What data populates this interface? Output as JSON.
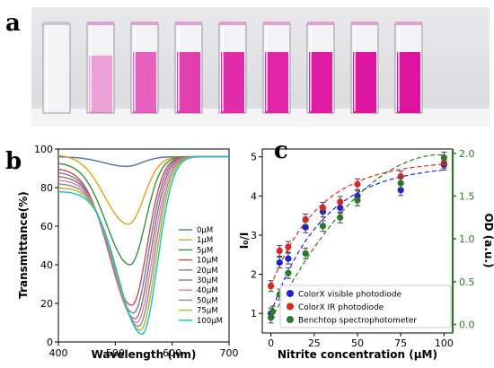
{
  "panels": {
    "a": "a",
    "b": "b",
    "c": "c"
  },
  "photo": {
    "cuvette_count": 9,
    "cuvette_fills": [
      0.0,
      0.15,
      0.5,
      0.7,
      0.8,
      0.85,
      0.9,
      0.93,
      0.96
    ]
  },
  "chart_data": [
    {
      "type": "line",
      "xlabel": "Wavelength (nm)",
      "ylabel": "Transmittance(%)",
      "xlim": [
        400,
        700
      ],
      "ylim": [
        0,
        100
      ],
      "xticks": [
        400,
        500,
        600,
        700
      ],
      "yticks": [
        0,
        20,
        40,
        60,
        80,
        100
      ],
      "grid": false,
      "legend": "right-center",
      "series": [
        {
          "name": "0μM",
          "color": "#4c72b0",
          "min": 91,
          "start": 96
        },
        {
          "name": "1μM",
          "color": "#d8a419",
          "min": 61,
          "start": 97
        },
        {
          "name": "5μM",
          "color": "#3a8f3a",
          "min": 40,
          "start": 93
        },
        {
          "name": "10μM",
          "color": "#c44e52",
          "min": 19,
          "start": 90
        },
        {
          "name": "20μM",
          "color": "#8172b2",
          "min": 15,
          "start": 88
        },
        {
          "name": "30μM",
          "color": "#937860",
          "min": 12,
          "start": 86
        },
        {
          "name": "40μM",
          "color": "#e377c2",
          "min": 10,
          "start": 84
        },
        {
          "name": "50μM",
          "color": "#8c8c8c",
          "min": 8,
          "start": 82
        },
        {
          "name": "75μM",
          "color": "#b5b521",
          "min": 6,
          "start": 80
        },
        {
          "name": "100μM",
          "color": "#17becf",
          "min": 4,
          "start": 78
        }
      ]
    },
    {
      "type": "scatter",
      "xlabel": "Nitrite concentration (μM)",
      "ylabel": "I₀/I",
      "ylabel_right": "OD (a.u.)",
      "xlim": [
        -5,
        105
      ],
      "ylim": [
        0.5,
        5.2
      ],
      "ylim_right": [
        -0.1,
        2.05
      ],
      "xticks": [
        0,
        25,
        50,
        75,
        100
      ],
      "yticks": [
        1,
        2,
        3,
        4,
        5
      ],
      "yticks_right": [
        0.0,
        0.5,
        1.0,
        1.5,
        2.0
      ],
      "legend": "bottom-right",
      "series": [
        {
          "name": "ColorX visible photodiode",
          "color": "#1f1fd6",
          "axis": "left",
          "x": [
            0,
            5,
            10,
            20,
            30,
            40,
            50,
            75,
            100
          ],
          "y": [
            1.0,
            2.3,
            2.4,
            3.2,
            3.6,
            3.7,
            4.0,
            4.15,
            4.8
          ]
        },
        {
          "name": "ColorX IR photodiode",
          "color": "#d62728",
          "axis": "left",
          "x": [
            0,
            5,
            10,
            20,
            30,
            40,
            50,
            75,
            100
          ],
          "y": [
            1.7,
            2.6,
            2.7,
            3.4,
            3.7,
            3.85,
            4.3,
            4.5,
            4.85
          ]
        },
        {
          "name": "Benchtop spectrophotometer",
          "color": "#2a7a2a",
          "axis": "right",
          "x": [
            0,
            1,
            5,
            10,
            20,
            30,
            40,
            50,
            75,
            100
          ],
          "y": [
            0.08,
            0.15,
            0.35,
            0.6,
            0.83,
            1.15,
            1.25,
            1.45,
            1.65,
            1.95
          ]
        }
      ]
    }
  ]
}
